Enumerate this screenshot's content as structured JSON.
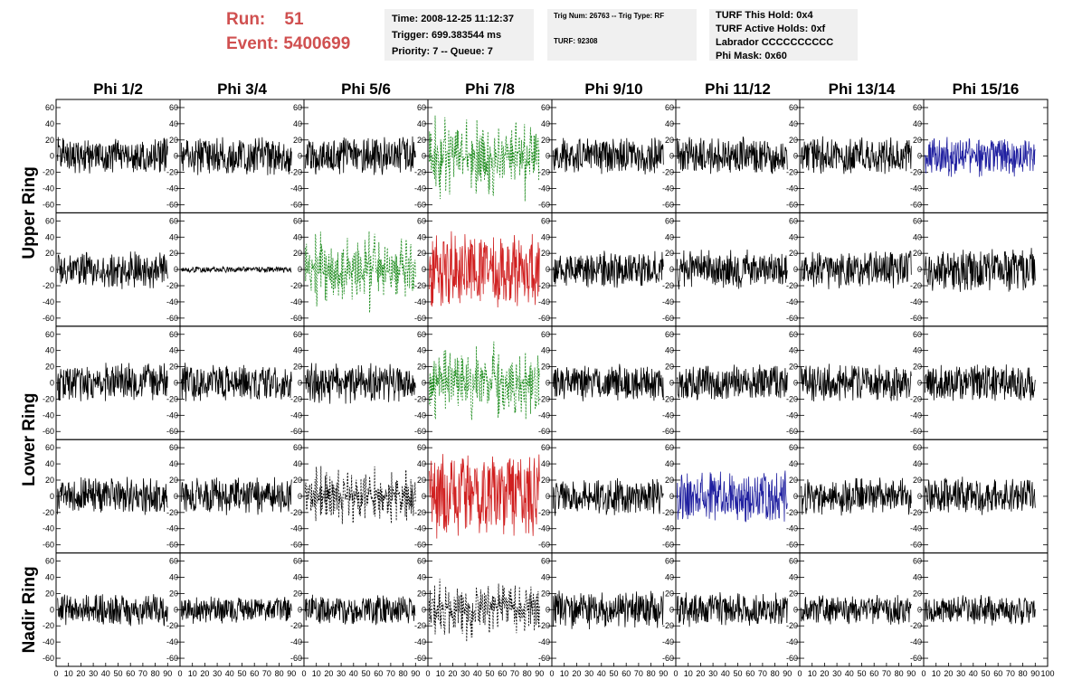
{
  "header": {
    "run_line": "Run:    51",
    "event_line": "Event: 5400699",
    "time": "Time: 2008-12-25 11:12:37",
    "trigger": "Trigger: 699.383544 ms",
    "priority": "Priority: 7 -- Queue: 7",
    "trig_num": "Trig Num: 26763 -- Trig Type: RF",
    "turf_num": "TURF: 92308",
    "turf_this_hold": "TURF This Hold: 0x4",
    "turf_active_holds": "TURF Active Holds: 0xf",
    "labrador": "Labrador CCCCCCCCCC",
    "phi_mask": "Phi Mask: 0x60"
  },
  "colors": {
    "header_red": "#d05050",
    "trace_black": "#000000",
    "trace_green": "#1a8a1a",
    "trace_red": "#d02020",
    "trace_blue": "#2020a0"
  },
  "chart_data": {
    "type": "line",
    "columns": [
      "Phi 1/2",
      "Phi 3/4",
      "Phi 5/6",
      "Phi 7/8",
      "Phi 9/10",
      "Phi 11/12",
      "Phi 13/14",
      "Phi 15/16"
    ],
    "ring_labels": [
      {
        "name": "Upper Ring",
        "rows": [
          0,
          1
        ]
      },
      {
        "name": "Lower Ring",
        "rows": [
          2,
          3
        ]
      },
      {
        "name": "Nadir Ring",
        "rows": [
          4
        ]
      }
    ],
    "xlim": [
      0,
      100
    ],
    "ylim": [
      -70,
      70
    ],
    "x_ticks": [
      "0",
      "10",
      "20",
      "30",
      "40",
      "50",
      "60",
      "70",
      "80",
      "90",
      "100"
    ],
    "y_ticks": [
      "60",
      "40",
      "20",
      "0",
      "-20",
      "-40",
      "-60"
    ],
    "panels": [
      [
        {
          "style": "black",
          "amplitude": 25,
          "seed": 11
        },
        {
          "style": "black",
          "amplitude": 25,
          "seed": 12
        },
        {
          "style": "black",
          "amplitude": 25,
          "seed": 13
        },
        {
          "style": "green",
          "amplitude": 55,
          "seed": 14
        },
        {
          "style": "black",
          "amplitude": 25,
          "seed": 15
        },
        {
          "style": "black",
          "amplitude": 25,
          "seed": 16
        },
        {
          "style": "black",
          "amplitude": 25,
          "seed": 17
        },
        {
          "style": "blue",
          "amplitude": 28,
          "seed": 18
        }
      ],
      [
        {
          "style": "black",
          "amplitude": 25,
          "seed": 21
        },
        {
          "style": "black",
          "amplitude": 4,
          "seed": 22
        },
        {
          "style": "green",
          "amplitude": 50,
          "seed": 23
        },
        {
          "style": "red",
          "amplitude": 50,
          "seed": 24
        },
        {
          "style": "black",
          "amplitude": 25,
          "seed": 25
        },
        {
          "style": "black",
          "amplitude": 25,
          "seed": 26
        },
        {
          "style": "black",
          "amplitude": 25,
          "seed": 27
        },
        {
          "style": "black",
          "amplitude": 28,
          "seed": 28
        }
      ],
      [
        {
          "style": "black",
          "amplitude": 25,
          "seed": 31
        },
        {
          "style": "black",
          "amplitude": 25,
          "seed": 32
        },
        {
          "style": "black",
          "amplitude": 28,
          "seed": 33
        },
        {
          "style": "green",
          "amplitude": 50,
          "seed": 34
        },
        {
          "style": "black",
          "amplitude": 25,
          "seed": 35
        },
        {
          "style": "black",
          "amplitude": 25,
          "seed": 36
        },
        {
          "style": "black",
          "amplitude": 25,
          "seed": 37
        },
        {
          "style": "black",
          "amplitude": 25,
          "seed": 38
        }
      ],
      [
        {
          "style": "black",
          "amplitude": 25,
          "seed": 41
        },
        {
          "style": "black",
          "amplitude": 25,
          "seed": 42
        },
        {
          "style": "black-dashed",
          "amplitude": 38,
          "seed": 43
        },
        {
          "style": "red",
          "amplitude": 55,
          "seed": 44
        },
        {
          "style": "black",
          "amplitude": 25,
          "seed": 45
        },
        {
          "style": "blue",
          "amplitude": 35,
          "seed": 46
        },
        {
          "style": "black",
          "amplitude": 25,
          "seed": 47
        },
        {
          "style": "black",
          "amplitude": 25,
          "seed": 48
        }
      ],
      [
        {
          "style": "black",
          "amplitude": 22,
          "seed": 51
        },
        {
          "style": "black",
          "amplitude": 18,
          "seed": 52
        },
        {
          "style": "black",
          "amplitude": 20,
          "seed": 53
        },
        {
          "style": "black-dashed",
          "amplitude": 40,
          "seed": 54
        },
        {
          "style": "black",
          "amplitude": 25,
          "seed": 55
        },
        {
          "style": "black",
          "amplitude": 22,
          "seed": 56
        },
        {
          "style": "black",
          "amplitude": 20,
          "seed": 57
        },
        {
          "style": "black",
          "amplitude": 20,
          "seed": 58
        }
      ]
    ]
  }
}
